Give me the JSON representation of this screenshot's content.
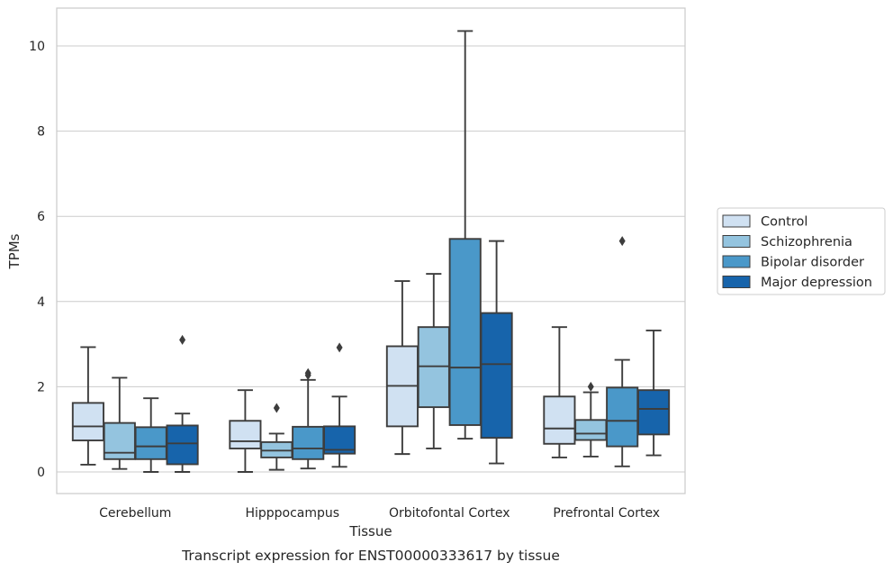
{
  "chart_data": {
    "type": "box",
    "xlabel": "Tissue",
    "ylabel": "TPMs",
    "caption": "Transcript expression for ENST00000333617 by tissue",
    "ylim": [
      -0.5,
      10.85
    ],
    "yticks": [
      0,
      2,
      4,
      6,
      8,
      10
    ],
    "grid": "horizontal",
    "legend_position": "right",
    "categories": [
      "Cerebellum",
      "Hipppocampus",
      "Orbitofontal Cortex",
      "Prefrontal Cortex"
    ],
    "series": [
      {
        "name": "Control",
        "color": "#d0e1f2",
        "boxes": [
          {
            "whislo": 0.17,
            "q1": 0.74,
            "med": 1.07,
            "q3": 1.62,
            "whishi": 2.93,
            "fliers": []
          },
          {
            "whislo": 0.0,
            "q1": 0.55,
            "med": 0.72,
            "q3": 1.2,
            "whishi": 1.92,
            "fliers": []
          },
          {
            "whislo": 0.42,
            "q1": 1.07,
            "med": 2.02,
            "q3": 2.95,
            "whishi": 4.48,
            "fliers": []
          },
          {
            "whislo": 0.34,
            "q1": 0.66,
            "med": 1.02,
            "q3": 1.77,
            "whishi": 3.4,
            "fliers": []
          }
        ]
      },
      {
        "name": "Schizophrenia",
        "color": "#94c4df",
        "boxes": [
          {
            "whislo": 0.07,
            "q1": 0.3,
            "med": 0.45,
            "q3": 1.15,
            "whishi": 2.21,
            "fliers": []
          },
          {
            "whislo": 0.05,
            "q1": 0.34,
            "med": 0.5,
            "q3": 0.7,
            "whishi": 0.9,
            "fliers": [
              1.5
            ]
          },
          {
            "whislo": 0.55,
            "q1": 1.52,
            "med": 2.48,
            "q3": 3.4,
            "whishi": 4.65,
            "fliers": []
          },
          {
            "whislo": 0.36,
            "q1": 0.75,
            "med": 0.9,
            "q3": 1.22,
            "whishi": 1.87,
            "fliers": [
              2.0
            ]
          }
        ]
      },
      {
        "name": "Bipolar disorder",
        "color": "#4a98c9",
        "boxes": [
          {
            "whislo": 0.0,
            "q1": 0.3,
            "med": 0.6,
            "q3": 1.05,
            "whishi": 1.73,
            "fliers": []
          },
          {
            "whislo": 0.08,
            "q1": 0.3,
            "med": 0.55,
            "q3": 1.06,
            "whishi": 2.16,
            "fliers": [
              2.27,
              2.32
            ]
          },
          {
            "whislo": 0.78,
            "q1": 1.1,
            "med": 2.45,
            "q3": 5.47,
            "whishi": 10.35,
            "fliers": []
          },
          {
            "whislo": 0.13,
            "q1": 0.6,
            "med": 1.2,
            "q3": 1.98,
            "whishi": 2.63,
            "fliers": [
              5.42
            ]
          }
        ]
      },
      {
        "name": "Major depression",
        "color": "#1764ab",
        "boxes": [
          {
            "whislo": 0.0,
            "q1": 0.18,
            "med": 0.67,
            "q3": 1.09,
            "whishi": 1.37,
            "fliers": [
              3.1
            ]
          },
          {
            "whislo": 0.12,
            "q1": 0.43,
            "med": 0.52,
            "q3": 1.07,
            "whishi": 1.77,
            "fliers": [
              2.92
            ]
          },
          {
            "whislo": 0.2,
            "q1": 0.8,
            "med": 2.53,
            "q3": 3.73,
            "whishi": 5.42,
            "fliers": []
          },
          {
            "whislo": 0.39,
            "q1": 0.88,
            "med": 1.48,
            "q3": 1.92,
            "whishi": 3.32,
            "fliers": []
          }
        ]
      }
    ]
  }
}
